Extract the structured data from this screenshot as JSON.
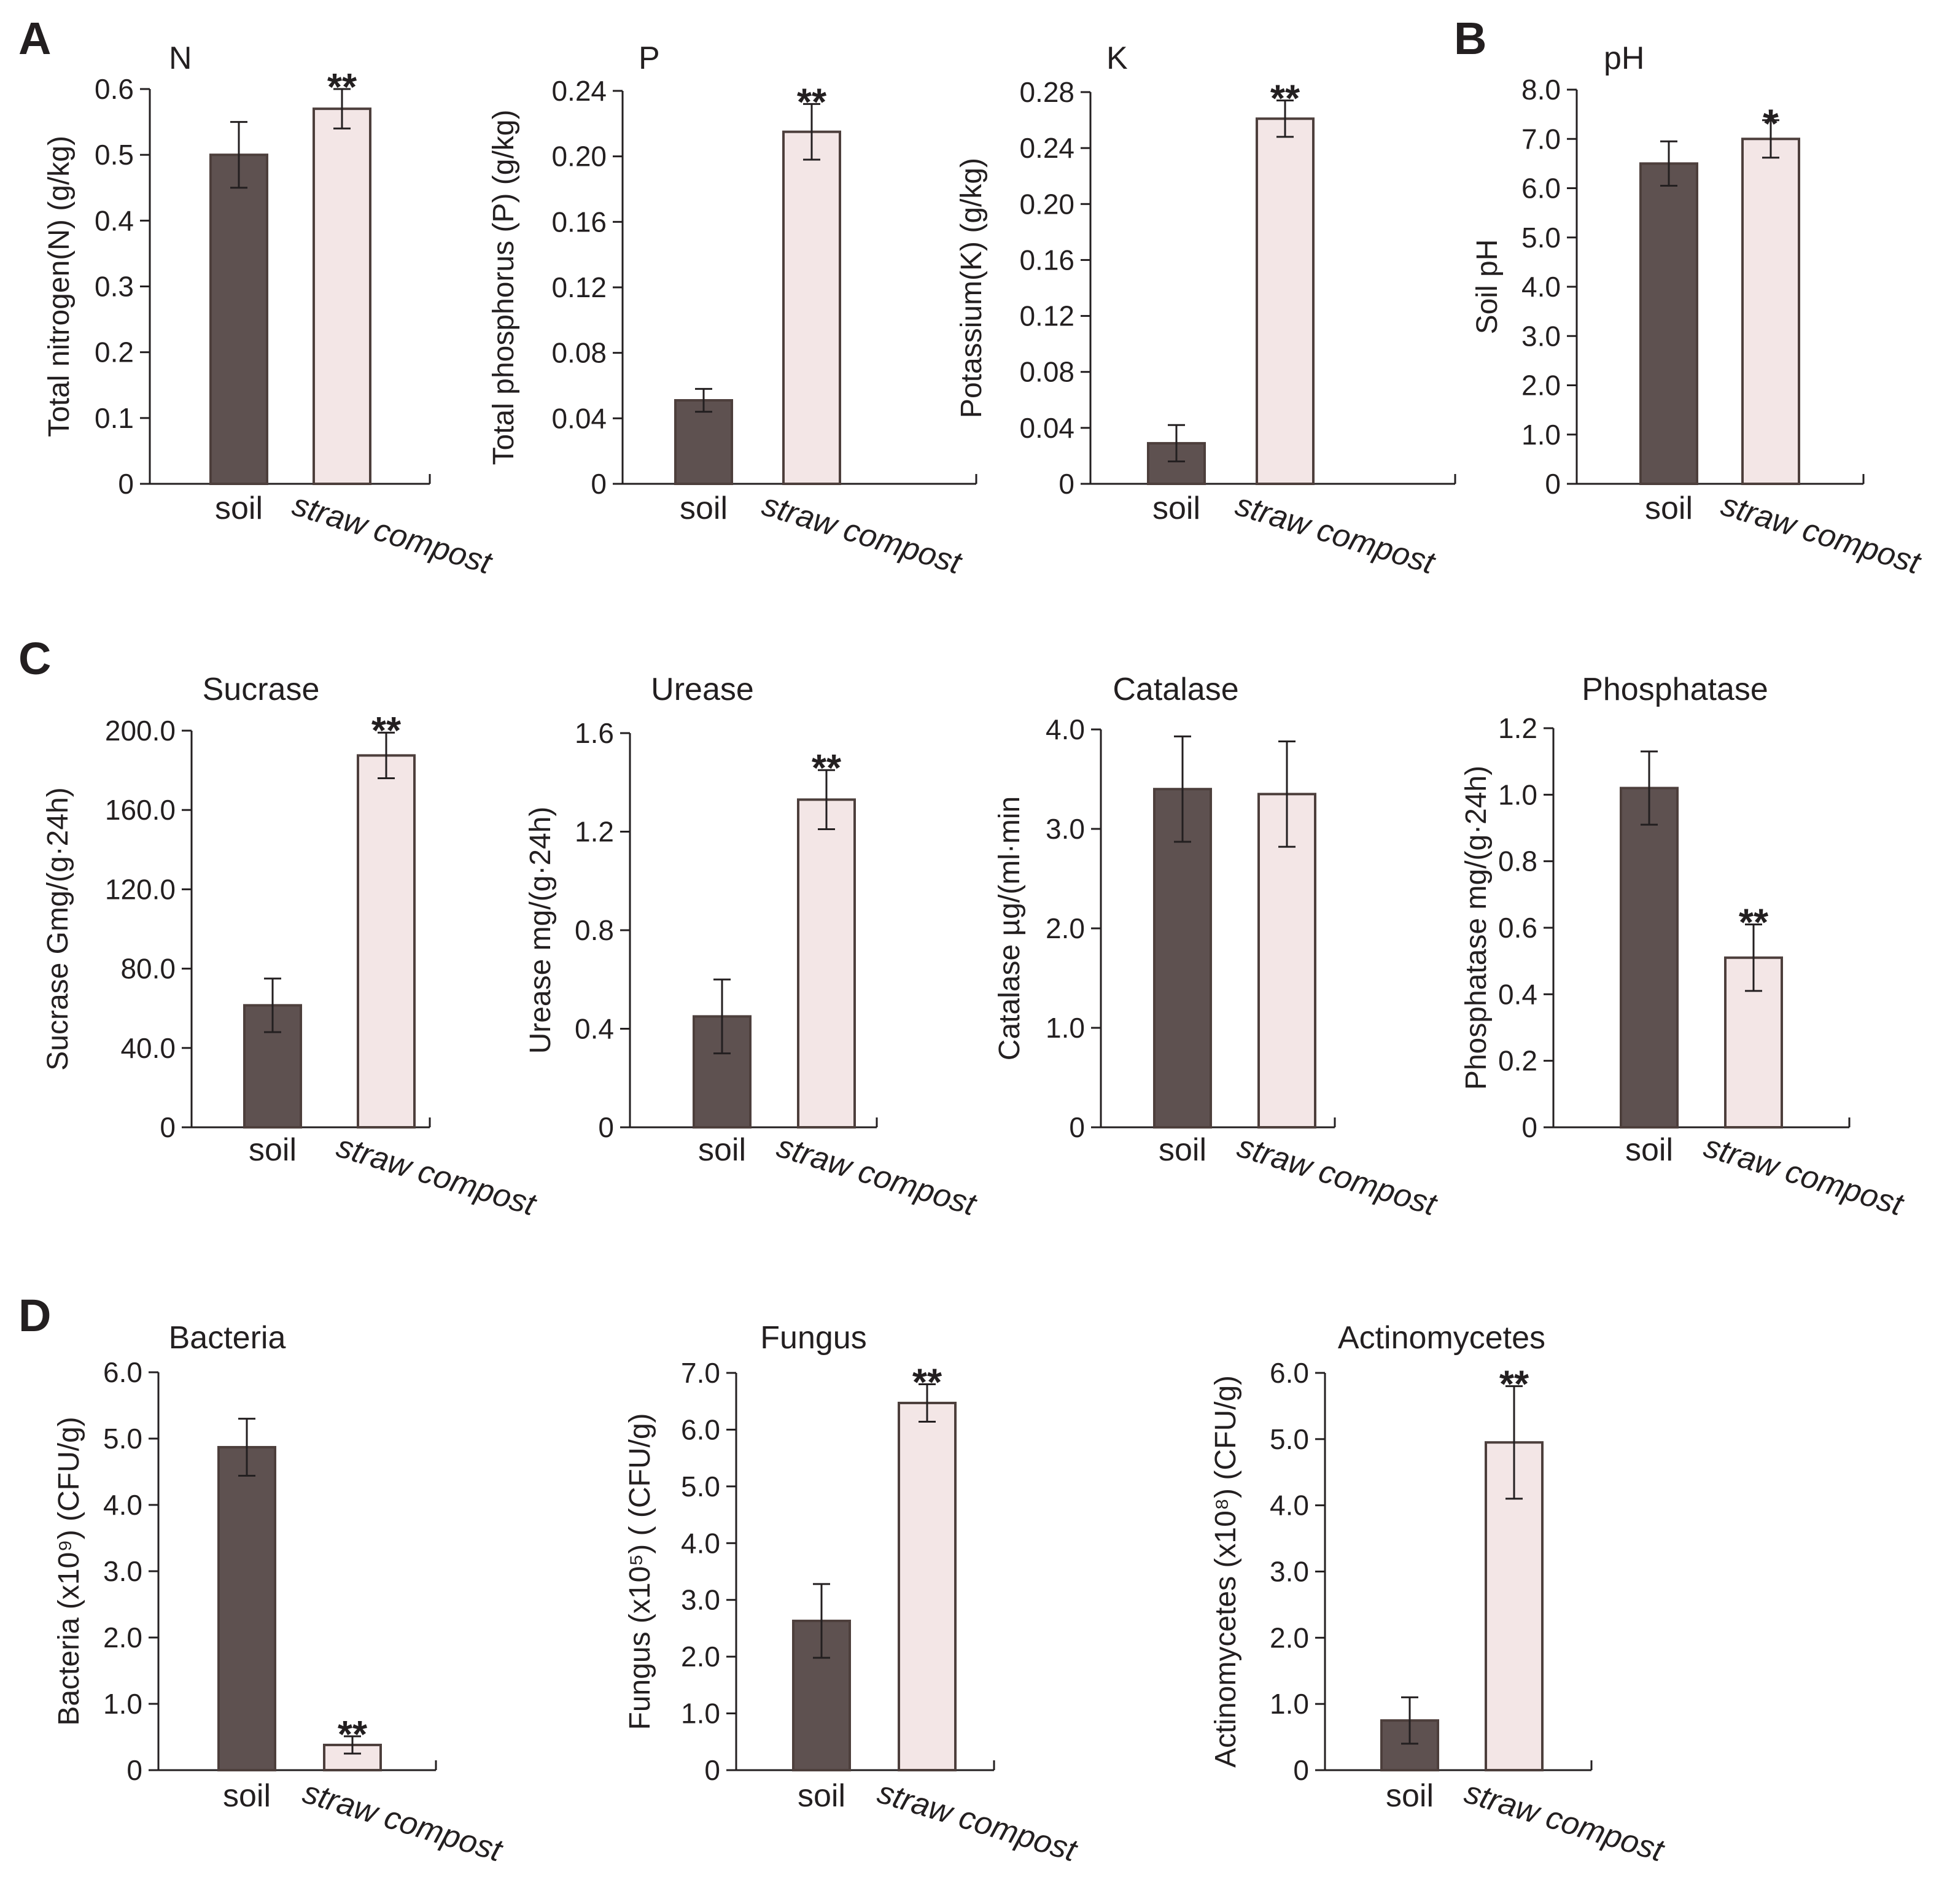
{
  "colors": {
    "soil": "#5e5150",
    "straw_compost": "#f3e6e6",
    "bar_stroke": "#4d3f3c",
    "axis": "#231f20"
  },
  "panel_letters": [
    "A",
    "B",
    "C",
    "D"
  ],
  "chart_data": [
    {
      "id": "N",
      "type": "bar",
      "panel": "A",
      "title": "N",
      "ylabel": "Total nitrogen(N) (g/kg)",
      "categories": [
        "soil",
        "straw compost"
      ],
      "values": [
        0.5,
        0.57
      ],
      "errors": [
        0.05,
        0.03
      ],
      "significance": [
        "",
        "**"
      ],
      "ylim": [
        0,
        0.6
      ],
      "yticks": [
        0,
        0.1,
        0.2,
        0.3,
        0.4,
        0.5,
        0.6
      ],
      "ytick_labels": [
        "0",
        "0.1",
        "0.2",
        "0.3",
        "0.4",
        "0.5",
        "0.6"
      ]
    },
    {
      "id": "P",
      "type": "bar",
      "panel": "A",
      "title": "P",
      "ylabel": "Total phosphorus (P) (g/kg)",
      "categories": [
        "soil",
        "straw compost"
      ],
      "values": [
        0.051,
        0.215
      ],
      "errors": [
        0.007,
        0.017
      ],
      "significance": [
        "",
        "**"
      ],
      "ylim": [
        0,
        0.24
      ],
      "yticks": [
        0,
        0.04,
        0.08,
        0.12,
        0.16,
        0.2,
        0.24
      ],
      "ytick_labels": [
        "0",
        "0.04",
        "0.08",
        "0.12",
        "0.16",
        "0.20",
        "0.24"
      ]
    },
    {
      "id": "K",
      "type": "bar",
      "panel": "A",
      "title": "K",
      "ylabel": "Potassium(K) (g/kg)",
      "categories": [
        "soil",
        "straw compost"
      ],
      "values": [
        0.029,
        0.261
      ],
      "errors": [
        0.013,
        0.013
      ],
      "significance": [
        "",
        "**"
      ],
      "ylim": [
        0,
        0.28
      ],
      "yticks": [
        0,
        0.04,
        0.08,
        0.12,
        0.16,
        0.2,
        0.24,
        0.28
      ],
      "ytick_labels": [
        "0",
        "0.04",
        "0.08",
        "0.12",
        "0.16",
        "0.20",
        "0.24",
        "0.28"
      ]
    },
    {
      "id": "pH",
      "type": "bar",
      "panel": "B",
      "title": "pH",
      "ylabel": "Soil pH",
      "categories": [
        "soil",
        "straw compost"
      ],
      "values": [
        6.5,
        7.0
      ],
      "errors": [
        0.45,
        0.38
      ],
      "significance": [
        "",
        "*"
      ],
      "ylim": [
        0,
        8.0
      ],
      "yticks": [
        0,
        1,
        2,
        3,
        4,
        5,
        6,
        7,
        8
      ],
      "ytick_labels": [
        "0",
        "1.0",
        "2.0",
        "3.0",
        "4.0",
        "5.0",
        "6.0",
        "7.0",
        "8.0"
      ]
    },
    {
      "id": "Sucrase",
      "type": "bar",
      "panel": "C",
      "title": "Sucrase",
      "ylabel": "Sucrase Gmg/(g·24h)",
      "categories": [
        "soil",
        "straw compost"
      ],
      "values": [
        61.5,
        187.5
      ],
      "errors": [
        13.5,
        11.5
      ],
      "significance": [
        "",
        "**"
      ],
      "ylim": [
        0,
        200
      ],
      "yticks": [
        0,
        40,
        80,
        120,
        160,
        200
      ],
      "ytick_labels": [
        "0",
        "40.0",
        "80.0",
        "120.0",
        "160.0",
        "200.0"
      ]
    },
    {
      "id": "Urease",
      "type": "bar",
      "panel": "C",
      "title": "Urease",
      "ylabel": "Urease mg/(g·24h)",
      "categories": [
        "soil",
        "straw compost"
      ],
      "values": [
        0.45,
        1.33
      ],
      "errors": [
        0.15,
        0.12
      ],
      "significance": [
        "",
        "**"
      ],
      "ylim": [
        0,
        1.6
      ],
      "yticks": [
        0,
        0.4,
        0.8,
        1.2,
        1.6
      ],
      "ytick_labels": [
        "0",
        "0.4",
        "0.8",
        "1.2",
        "1.6"
      ]
    },
    {
      "id": "Catalase",
      "type": "bar",
      "panel": "C",
      "title": "Catalase",
      "ylabel": "Catalase µg/(ml·min",
      "categories": [
        "soil",
        "straw compost"
      ],
      "values": [
        3.4,
        3.35
      ],
      "errors": [
        0.53,
        0.53
      ],
      "significance": [
        "",
        ""
      ],
      "ylim": [
        0,
        4.0
      ],
      "yticks": [
        0,
        1,
        2,
        3,
        4
      ],
      "ytick_labels": [
        "0",
        "1.0",
        "2.0",
        "3.0",
        "4.0"
      ]
    },
    {
      "id": "Phosphatase",
      "type": "bar",
      "panel": "C",
      "title": "Phosphatase",
      "ylabel": "Phosphatase mg/(g·24h)",
      "categories": [
        "soil",
        "straw compost"
      ],
      "values": [
        1.02,
        0.51
      ],
      "errors": [
        0.11,
        0.1
      ],
      "significance": [
        "",
        "**"
      ],
      "ylim": [
        0,
        1.2
      ],
      "yticks": [
        0,
        0.2,
        0.4,
        0.6,
        0.8,
        1.0,
        1.2
      ],
      "ytick_labels": [
        "0",
        "0.2",
        "0.4",
        "0.6",
        "0.8",
        "1.0",
        "1.2"
      ]
    },
    {
      "id": "Bacteria",
      "type": "bar",
      "panel": "D",
      "title": "Bacteria",
      "ylabel": "Bacteria (x10⁹) (CFU/g)",
      "categories": [
        "soil",
        "straw compost"
      ],
      "values": [
        4.87,
        0.38
      ],
      "errors": [
        0.43,
        0.13
      ],
      "significance": [
        "",
        "**"
      ],
      "ylim": [
        0,
        6.0
      ],
      "yticks": [
        0,
        1,
        2,
        3,
        4,
        5,
        6
      ],
      "ytick_labels": [
        "0",
        "1.0",
        "2.0",
        "3.0",
        "4.0",
        "5.0",
        "6.0"
      ]
    },
    {
      "id": "Fungus",
      "type": "bar",
      "panel": "D",
      "title": "Fungus",
      "ylabel": "Fungus (x10⁵) ( (CFU/g)",
      "categories": [
        "soil",
        "straw compost"
      ],
      "values": [
        2.63,
        6.47
      ],
      "errors": [
        0.65,
        0.33
      ],
      "significance": [
        "",
        "**"
      ],
      "ylim": [
        0,
        7.0
      ],
      "yticks": [
        0,
        1,
        2,
        3,
        4,
        5,
        6,
        7
      ],
      "ytick_labels": [
        "0",
        "1.0",
        "2.0",
        "3.0",
        "4.0",
        "5.0",
        "6.0",
        "7.0"
      ]
    },
    {
      "id": "Actinomycetes",
      "type": "bar",
      "panel": "D",
      "title": "Actinomycetes",
      "ylabel": "Actinomycetes (x10⁸) (CFU/g)",
      "categories": [
        "soil",
        "straw compost"
      ],
      "values": [
        0.75,
        4.95
      ],
      "errors": [
        0.35,
        0.85
      ],
      "significance": [
        "",
        "**"
      ],
      "ylim": [
        0,
        6.0
      ],
      "yticks": [
        0,
        1,
        2,
        3,
        4,
        5,
        6
      ],
      "ytick_labels": [
        "0",
        "1.0",
        "2.0",
        "3.0",
        "4.0",
        "5.0",
        "6.0"
      ]
    }
  ]
}
